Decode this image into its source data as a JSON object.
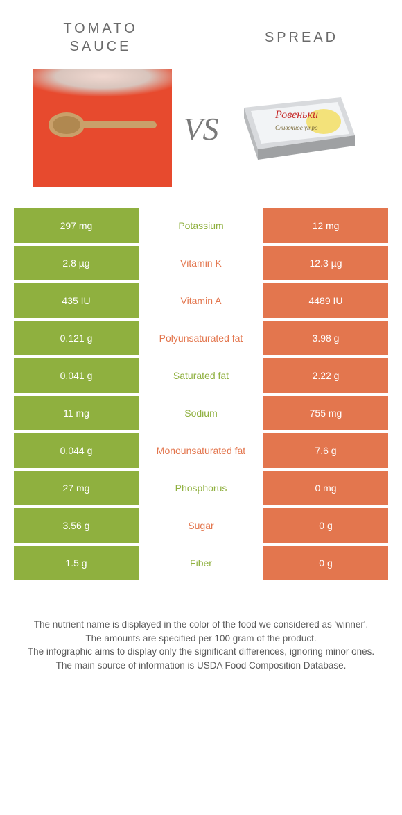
{
  "labels": {
    "left_title": "TOMATO\nSAUCE",
    "right_title": "SPREAD",
    "vs": "VS"
  },
  "colors": {
    "left_cell": "#8fb03f",
    "right_cell": "#e3764e",
    "mid_text_green": "#8fb03f",
    "mid_text_orange": "#e3764e",
    "white_text": "#ffffff"
  },
  "table": [
    {
      "left": "297 mg",
      "name": "Potassium",
      "right": "12 mg",
      "winner": "left"
    },
    {
      "left": "2.8 µg",
      "name": "Vitamin K",
      "right": "12.3 µg",
      "winner": "right"
    },
    {
      "left": "435 IU",
      "name": "Vitamin A",
      "right": "4489 IU",
      "winner": "right"
    },
    {
      "left": "0.121 g",
      "name": "Polyunsaturated fat",
      "right": "3.98 g",
      "winner": "right"
    },
    {
      "left": "0.041 g",
      "name": "Saturated fat",
      "right": "2.22 g",
      "winner": "left"
    },
    {
      "left": "11 mg",
      "name": "Sodium",
      "right": "755 mg",
      "winner": "left"
    },
    {
      "left": "0.044 g",
      "name": "Monounsaturated fat",
      "right": "7.6 g",
      "winner": "right"
    },
    {
      "left": "27 mg",
      "name": "Phosphorus",
      "right": "0 mg",
      "winner": "left"
    },
    {
      "left": "3.56 g",
      "name": "Sugar",
      "right": "0 g",
      "winner": "right"
    },
    {
      "left": "1.5 g",
      "name": "Fiber",
      "right": "0 g",
      "winner": "left"
    }
  ],
  "footer": {
    "l1": "The nutrient name is displayed in the color of the food we considered as 'winner'.",
    "l2": "The amounts are specified per 100 gram of the product.",
    "l3": "The infographic aims to display only the significant differences, ignoring minor ones.",
    "l4": "The main source of information is USDA Food Composition Database."
  }
}
